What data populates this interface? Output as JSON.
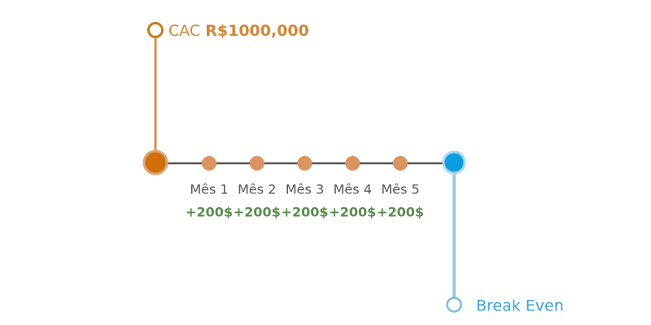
{
  "cac": {
    "label": "CAC",
    "value": "R$1000,000"
  },
  "months": [
    {
      "label": "Mês 1",
      "gain": "+200$"
    },
    {
      "label": "Mês 2",
      "gain": "+200$"
    },
    {
      "label": "Mês 3",
      "gain": "+200$"
    },
    {
      "label": "Mês 4",
      "gain": "+200$"
    },
    {
      "label": "Mês 5",
      "gain": "+200$"
    }
  ],
  "break_even": {
    "label": "Break Even"
  }
}
